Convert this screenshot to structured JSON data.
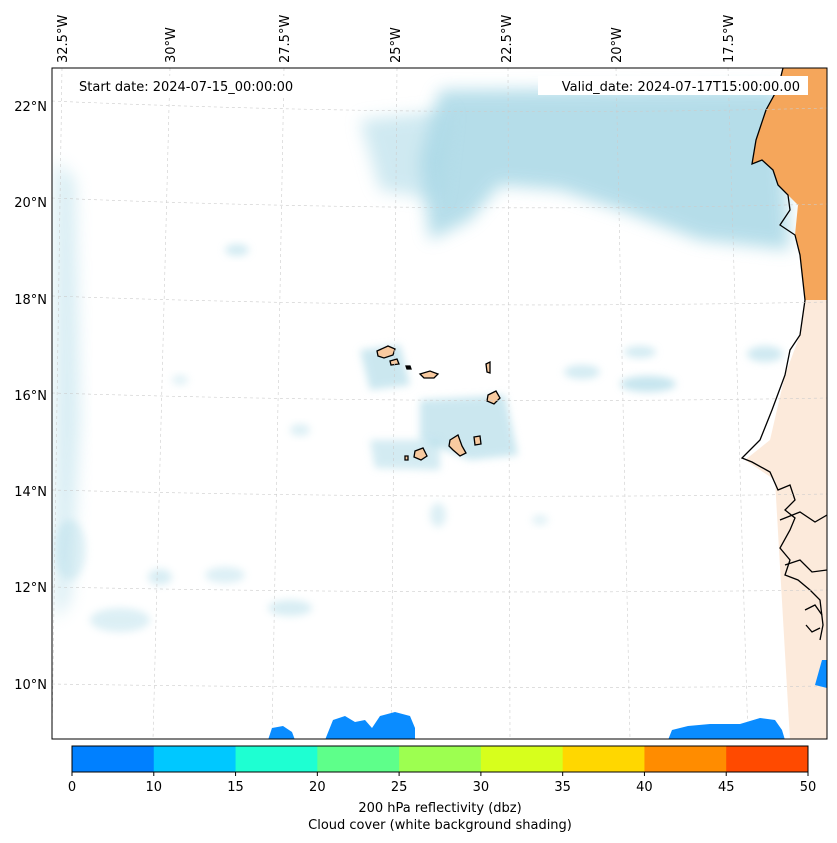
{
  "map": {
    "lon_labels": [
      "32.5°W",
      "30°W",
      "27.5°W",
      "25°W",
      "22.5°W",
      "20°W",
      "17.5°W"
    ],
    "lat_labels": [
      "22°N",
      "20°N",
      "18°N",
      "16°N",
      "14°N",
      "12°N",
      "10°N"
    ],
    "start_date": "Start date: 2024-07-15_00:00:00",
    "valid_date": "Valid_date: 2024-07-17T15:00:00.00"
  },
  "colorbar": {
    "ticks": [
      "0",
      "10",
      "15",
      "20",
      "25",
      "30",
      "35",
      "40",
      "45",
      "50"
    ],
    "colors": [
      "#0080ff",
      "#00c8ff",
      "#1effd2",
      "#5eff8a",
      "#9dff50",
      "#d7ff1c",
      "#ffd700",
      "#ff8c00",
      "#ff4a00"
    ],
    "label": "200 hPa reflectivity (dbz)",
    "sublabel": "Cloud cover (white background shading)"
  },
  "colors": {
    "cloud": "#a9d8e6",
    "land_orange": "#f5a65b",
    "island_fill": "#f8caa0",
    "radar_blue": "#0a8cff"
  }
}
